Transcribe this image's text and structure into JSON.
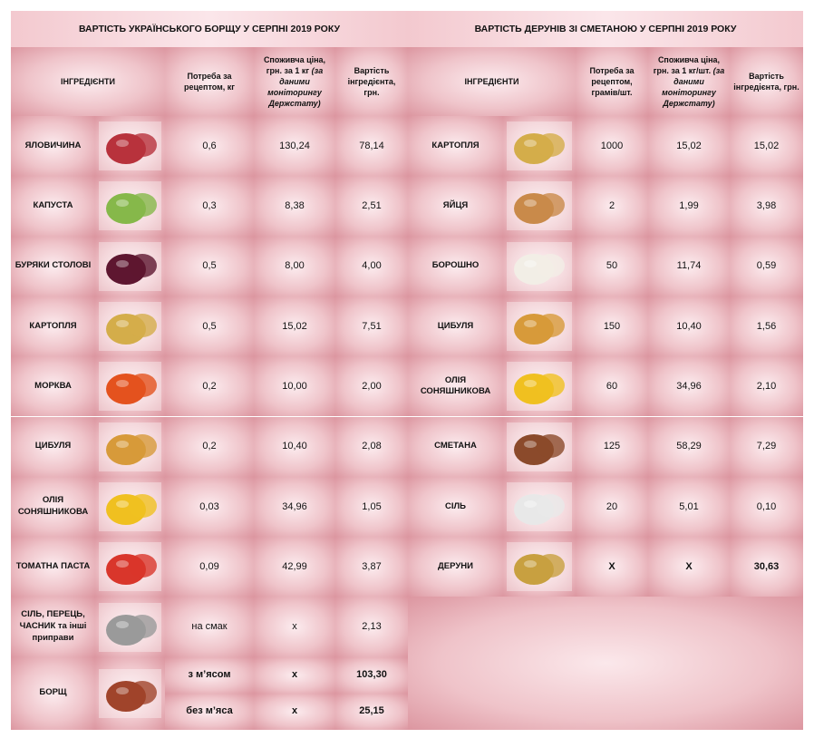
{
  "left": {
    "title": "ВАРТІСТЬ УКРАЇНСЬКОГО БОРЩУ У СЕРПНІ  2019 РОКУ",
    "headers": {
      "ingredients": "ІНГРЕДІЄНТИ",
      "need": "Потреба за рецептом, кг",
      "price": "Споживча ціна, грн. за 1 кг",
      "price_note": "(за даними моніторингу Держстату)",
      "cost": "Вартість інгредієнта, грн."
    },
    "rows": [
      {
        "name": "ЯЛОВИЧИНА",
        "need": "0,6",
        "price": "130,24",
        "cost": "78,14"
      },
      {
        "name": "КАПУСТА",
        "need": "0,3",
        "price": "8,38",
        "cost": "2,51"
      },
      {
        "name": "БУРЯКИ СТОЛОВІ",
        "need": "0,5",
        "price": "8,00",
        "cost": "4,00"
      },
      {
        "name": "КАРТОПЛЯ",
        "need": "0,5",
        "price": "15,02",
        "cost": "7,51"
      },
      {
        "name": "МОРКВА",
        "need": "0,2",
        "price": "10,00",
        "cost": "2,00"
      },
      {
        "name": "ЦИБУЛЯ",
        "need": "0,2",
        "price": "10,40",
        "cost": "2,08"
      },
      {
        "name": "ОЛІЯ СОНЯШНИКОВА",
        "need": "0,03",
        "price": "34,96",
        "cost": "1,05"
      },
      {
        "name": "ТОМАТНА ПАСТА",
        "need": "0,09",
        "price": "42,99",
        "cost": "3,87"
      },
      {
        "name": "СІЛЬ, ПЕРЕЦЬ, ЧАСНИК та інші приправи",
        "need": "на смак",
        "price": "х",
        "cost": "2,13"
      }
    ],
    "total": {
      "name": "БОРЩ",
      "rows": [
        {
          "variant": "з м’ясом",
          "price": "х",
          "cost": "103,30"
        },
        {
          "variant": "без м’яса",
          "price": "х",
          "cost": "25,15"
        }
      ]
    }
  },
  "right": {
    "title": "ВАРТІСТЬ ДЕРУНІВ ЗІ СМЕТАНОЮ У СЕРПНІ 2019 РОКУ",
    "headers": {
      "ingredients": "ІНГРЕДІЄНТИ",
      "need": "Потреба за рецептом, грамів/шт.",
      "price": "Споживча ціна, грн. за 1 кг/шт.",
      "price_note": "(за даними моніторингу Держстату)",
      "cost": "Вартість інгредієнта, грн."
    },
    "rows": [
      {
        "name": "КАРТОПЛЯ",
        "need": "1000",
        "price": "15,02",
        "cost": "15,02"
      },
      {
        "name": "ЯЙЦЯ",
        "need": "2",
        "price": "1,99",
        "cost": "3,98"
      },
      {
        "name": "БОРОШНО",
        "need": "50",
        "price": "11,74",
        "cost": "0,59"
      },
      {
        "name": "ЦИБУЛЯ",
        "need": "150",
        "price": "10,40",
        "cost": "1,56"
      },
      {
        "name": "ОЛІЯ СОНЯШНИКОВА",
        "need": "60",
        "price": "34,96",
        "cost": "2,10"
      },
      {
        "name": "СМЕТАНА",
        "need": "125",
        "price": "58,29",
        "cost": "7,29"
      },
      {
        "name": "СІЛЬ",
        "need": "20",
        "price": "5,01",
        "cost": "0,10"
      },
      {
        "name": "ДЕРУНИ",
        "need": "Х",
        "price": "Х",
        "cost": "30,63"
      }
    ]
  }
}
